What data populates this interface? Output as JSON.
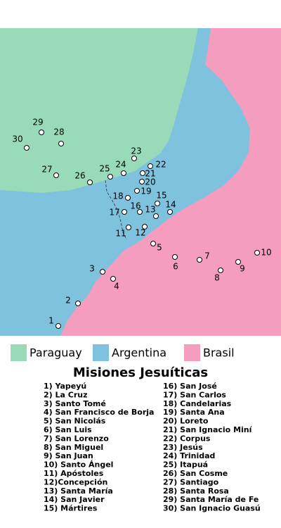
{
  "map": {
    "markers": [
      "1",
      "2",
      "3",
      "4",
      "5",
      "6",
      "7",
      "8",
      "9",
      "10",
      "11",
      "12",
      "13",
      "14",
      "15",
      "16",
      "17",
      "18",
      "19",
      "20",
      "21",
      "22",
      "23",
      "24",
      "25",
      "26",
      "27",
      "28",
      "29",
      "30"
    ],
    "legend": [
      {
        "name": "Paraguay",
        "color": "#99dbb9"
      },
      {
        "name": "Argentina",
        "color": "#7fc2dd"
      },
      {
        "name": "Brasil",
        "color": "#f49dbf"
      }
    ]
  },
  "title": "Misiones Jesuíticas",
  "missions": [
    "1) Yapeyú",
    "2) La Cruz",
    "3) Santo Tomé",
    "4) San Francisco de Borja",
    "5) San Nicolás",
    "6) San Luis",
    "7) San Lorenzo",
    "8) San Miguel",
    "9) San Juan",
    "10) Santo Ángel",
    "11) Apóstoles",
    "12)Concepción",
    "13) Santa María",
    "14) San Javier",
    "15) Mártires",
    "16) San José",
    "17) San Carlos",
    "18) Candelarias",
    "19) Santa Ana",
    "20) Loreto",
    "21) San Ignacio Miní",
    "22) Corpus",
    "23) Jesús",
    "24) Trinidad",
    "25) Itapuá",
    "26) San Cosme",
    "27) Santiago",
    "28) Santa Rosa",
    "29) Santa María de Fe",
    "30) San Ignacio Guasú"
  ]
}
